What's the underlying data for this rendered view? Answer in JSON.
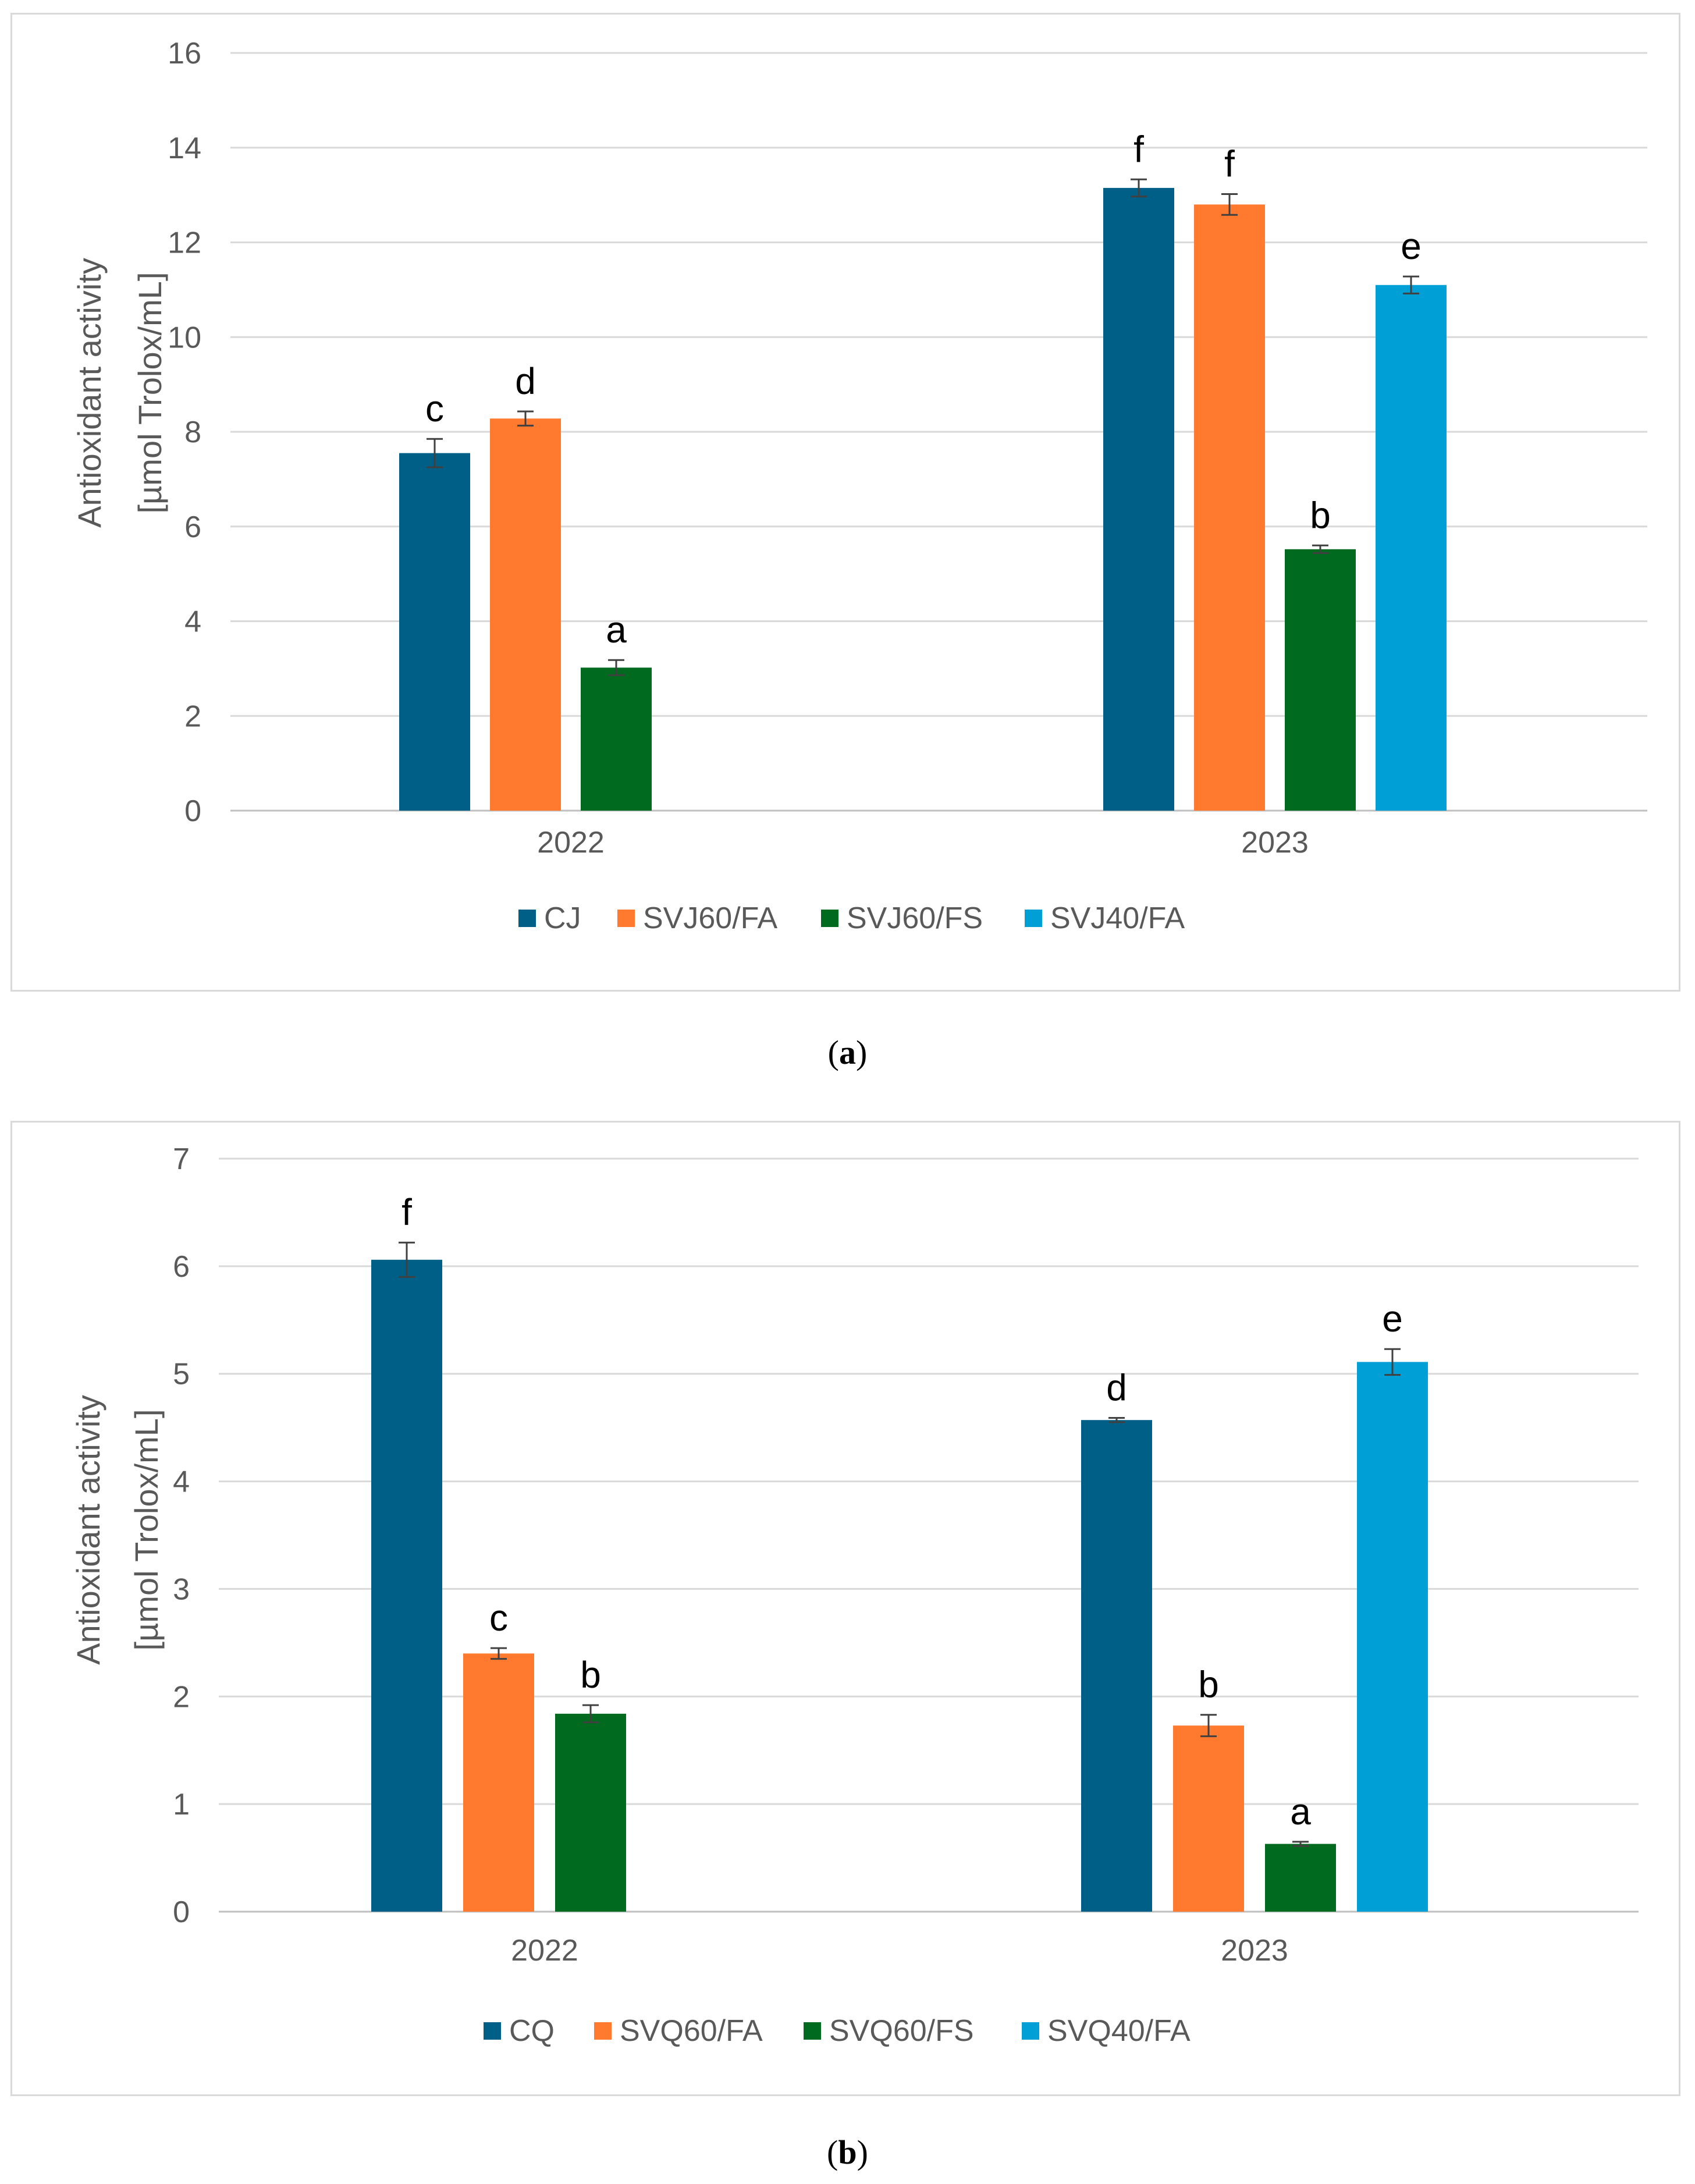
{
  "chart_data": [
    {
      "type": "bar",
      "panel": "a",
      "ylabel": [
        "Antioxidant activity",
        "[µmol Trolox/mL]"
      ],
      "ylim": [
        0,
        16
      ],
      "yticks": [
        0,
        2,
        4,
        6,
        8,
        10,
        12,
        14,
        16
      ],
      "categories": [
        "2022",
        "2023"
      ],
      "grid": true,
      "legend_position": "bottom",
      "series": [
        {
          "name": "CJ",
          "color": "#005f86",
          "values": [
            7.55,
            13.15
          ],
          "errors": [
            0.3,
            0.18
          ],
          "letters": [
            "c",
            "f"
          ]
        },
        {
          "name": "SVJ60/FA",
          "color": "#ff7a2f",
          "values": [
            8.28,
            12.8
          ],
          "errors": [
            0.15,
            0.22
          ],
          "letters": [
            "d",
            "f"
          ]
        },
        {
          "name": "SVJ60/FS",
          "color": "#006b1e",
          "values": [
            3.02,
            5.52
          ],
          "errors": [
            0.16,
            0.08
          ],
          "letters": [
            "a",
            "b"
          ]
        },
        {
          "name": "SVJ40/FA",
          "color": "#00a0d6",
          "values": [
            null,
            11.1
          ],
          "errors": [
            null,
            0.18
          ],
          "letters": [
            "",
            "e"
          ]
        }
      ]
    },
    {
      "type": "bar",
      "panel": "b",
      "ylabel": [
        "Antioxidant activity",
        "[µmol Trolox/mL]"
      ],
      "ylim": [
        0,
        7
      ],
      "yticks": [
        0,
        1,
        2,
        3,
        4,
        5,
        6,
        7
      ],
      "categories": [
        "2022",
        "2023"
      ],
      "grid": true,
      "legend_position": "bottom",
      "series": [
        {
          "name": "CQ",
          "color": "#005f86",
          "values": [
            6.06,
            4.57
          ],
          "errors": [
            0.16,
            0.02
          ],
          "letters": [
            "f",
            "d"
          ]
        },
        {
          "name": "SVQ60/FA",
          "color": "#ff7a2f",
          "values": [
            2.4,
            1.73
          ],
          "errors": [
            0.05,
            0.1
          ],
          "letters": [
            "c",
            "b"
          ]
        },
        {
          "name": "SVQ60/FS",
          "color": "#006b1e",
          "values": [
            1.84,
            0.63
          ],
          "errors": [
            0.08,
            0.02
          ],
          "letters": [
            "b",
            "a"
          ]
        },
        {
          "name": "SVQ40/FA",
          "color": "#00a0d6",
          "values": [
            null,
            5.11
          ],
          "errors": [
            null,
            0.12
          ],
          "letters": [
            "",
            "e"
          ]
        }
      ]
    }
  ],
  "captions": [
    {
      "open": "(",
      "letter": "a",
      "close": ")"
    },
    {
      "open": "(",
      "letter": "b",
      "close": ")"
    }
  ]
}
